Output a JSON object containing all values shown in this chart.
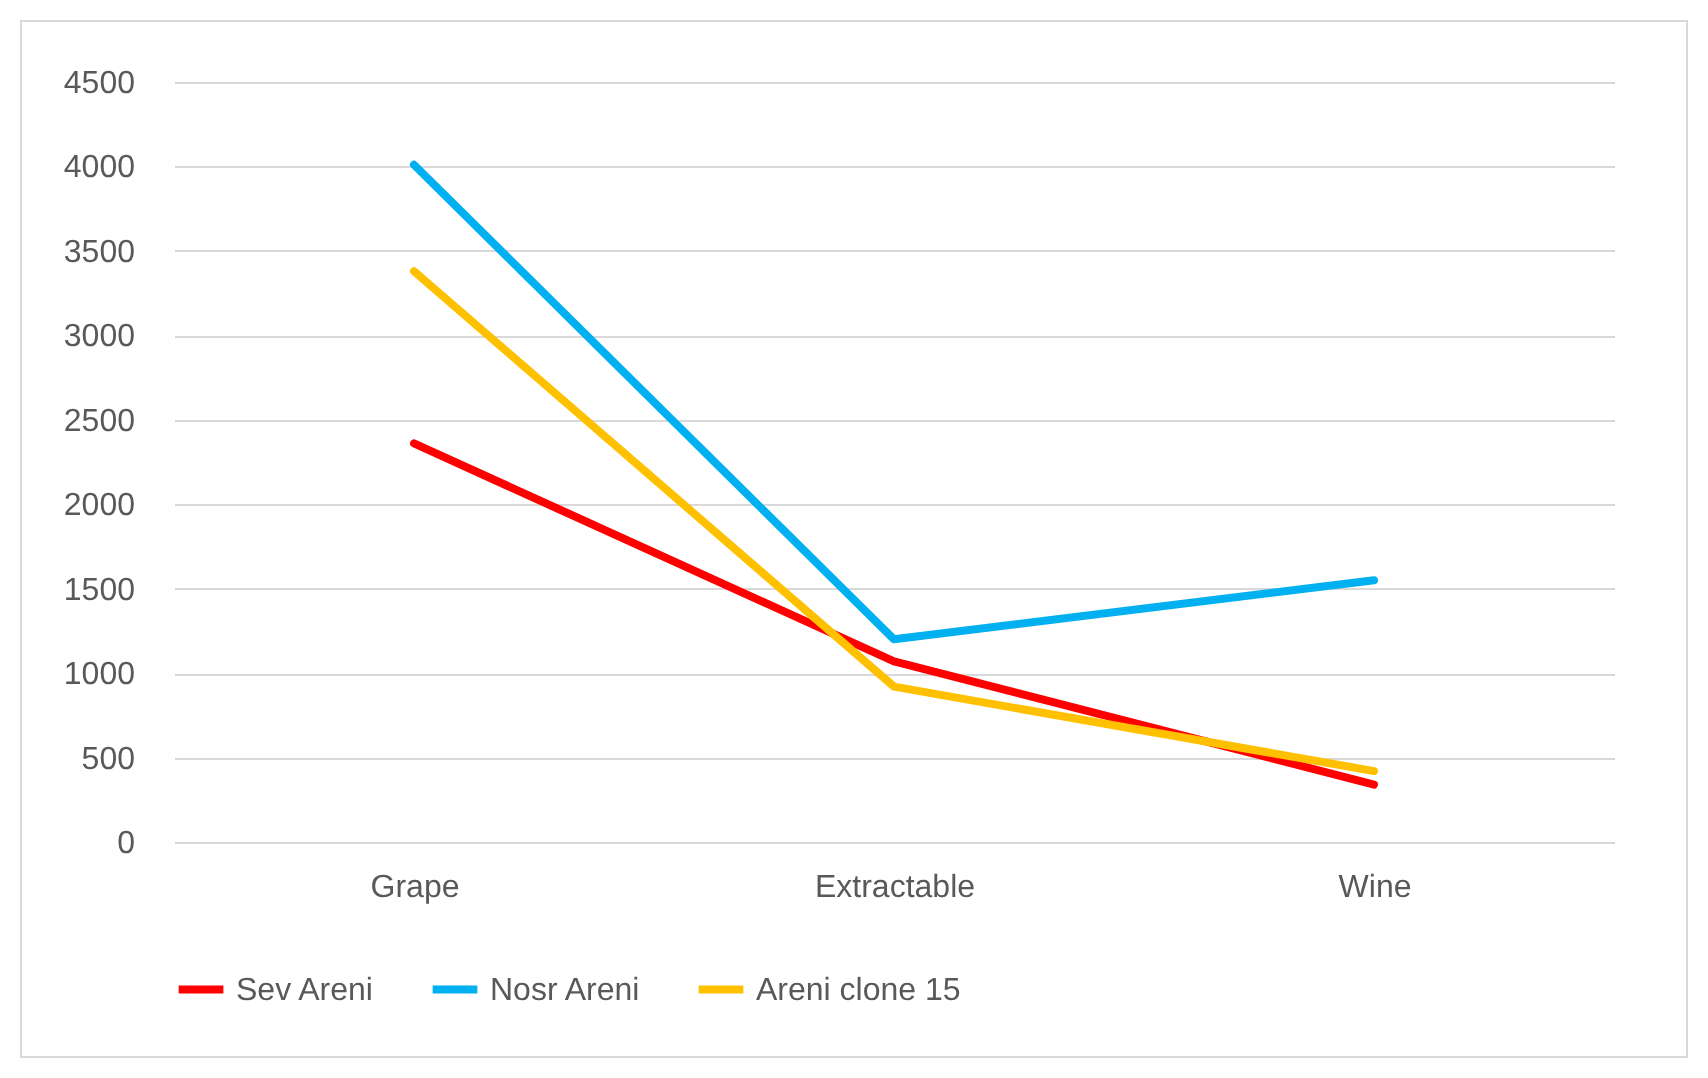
{
  "chart_data": {
    "type": "line",
    "categories": [
      "Grape",
      "Extractable",
      "Wine"
    ],
    "series": [
      {
        "name": "Sev Areni",
        "color": "#ff0000",
        "values": [
          2360,
          1070,
          340
        ]
      },
      {
        "name": "Nosr Areni",
        "color": "#00b0f0",
        "values": [
          4010,
          1200,
          1550
        ]
      },
      {
        "name": "Areni clone 15",
        "color": "#ffc000",
        "values": [
          3380,
          920,
          420
        ]
      }
    ],
    "ylim": [
      0,
      4500
    ],
    "yticks": [
      0,
      500,
      1000,
      1500,
      2000,
      2500,
      3000,
      3500,
      4000,
      4500
    ],
    "grid": "y",
    "legend": "bottom",
    "marker": "none",
    "line_style": "solid"
  }
}
